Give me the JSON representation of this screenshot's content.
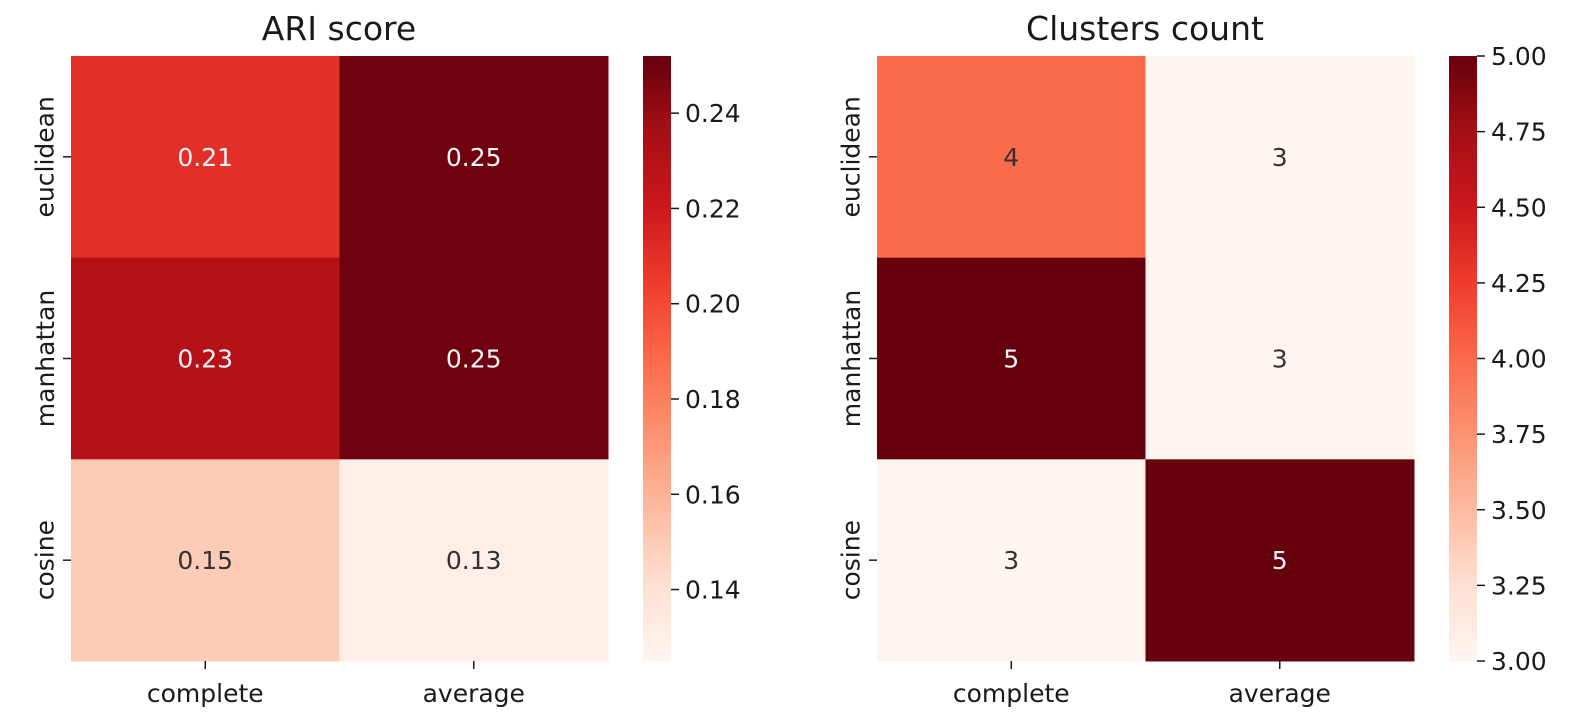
{
  "chart_data": [
    {
      "type": "heatmap",
      "title": "ARI score",
      "x_categories": [
        "complete",
        "average"
      ],
      "y_categories": [
        "euclidean",
        "manhattan",
        "cosine"
      ],
      "values": [
        [
          0.21,
          0.25
        ],
        [
          0.23,
          0.25
        ],
        [
          0.15,
          0.13
        ]
      ],
      "value_labels": [
        [
          "0.21",
          "0.25"
        ],
        [
          "0.23",
          "0.25"
        ],
        [
          "0.15",
          "0.13"
        ]
      ],
      "colorbar": {
        "range": [
          0.125,
          0.252
        ],
        "ticks": [
          0.14,
          0.16,
          0.18,
          0.2,
          0.22,
          0.24
        ],
        "tick_labels": [
          "0.14",
          "0.16",
          "0.18",
          "0.20",
          "0.22",
          "0.24"
        ]
      },
      "colormap": "Reds"
    },
    {
      "type": "heatmap",
      "title": "Clusters count",
      "x_categories": [
        "complete",
        "average"
      ],
      "y_categories": [
        "euclidean",
        "manhattan",
        "cosine"
      ],
      "values": [
        [
          4,
          3
        ],
        [
          5,
          3
        ],
        [
          3,
          5
        ]
      ],
      "value_labels": [
        [
          "4",
          "3"
        ],
        [
          "5",
          "3"
        ],
        [
          "3",
          "5"
        ]
      ],
      "colorbar": {
        "range": [
          3,
          5
        ],
        "ticks": [
          3,
          3.25,
          3.5,
          3.75,
          4,
          4.25,
          4.5,
          4.75,
          5
        ],
        "tick_labels": [
          "3.00",
          "3.25",
          "3.50",
          "3.75",
          "4.00",
          "4.25",
          "4.50",
          "4.75",
          "5.00"
        ]
      },
      "colormap": "Reds"
    }
  ]
}
